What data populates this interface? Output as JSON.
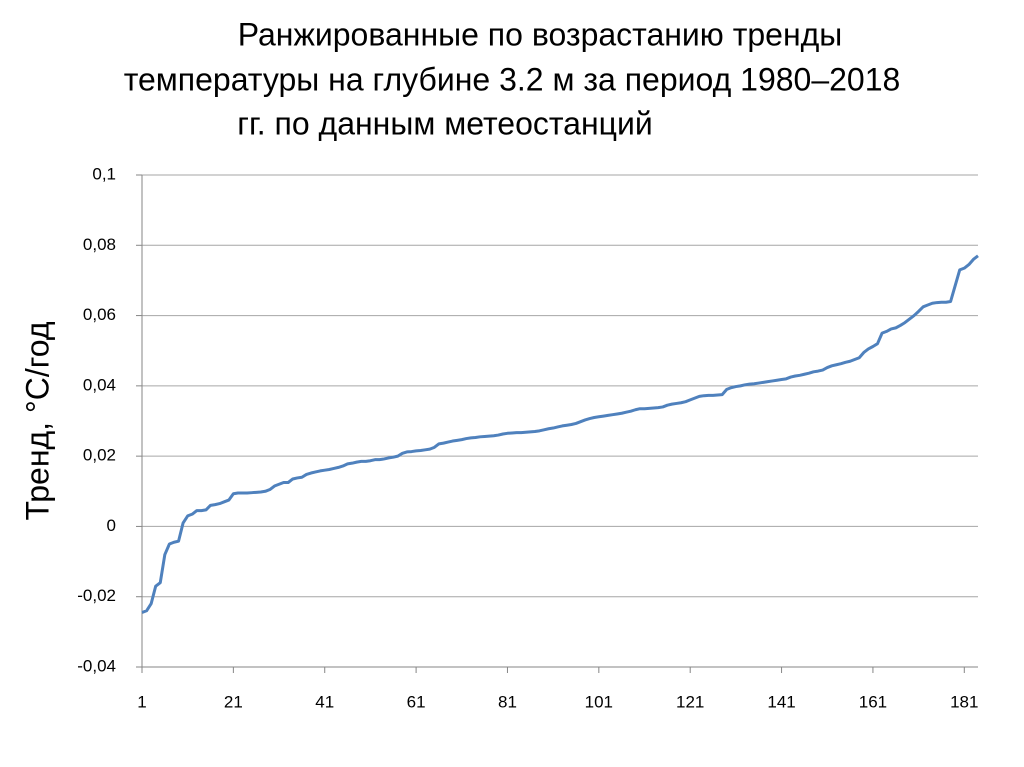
{
  "chart_data": {
    "type": "line",
    "title": [
      "Ранжированные по возрастанию тренды",
      "температуры на глубине 3.2 м за период 1980–2018",
      "гг. по данным метеостанций"
    ],
    "ylabel": "Тренд,  °C/год",
    "x": [
      1,
      2,
      3,
      4,
      5,
      6,
      7,
      8,
      9,
      10,
      11,
      12,
      13,
      14,
      15,
      16,
      17,
      18,
      19,
      20,
      21,
      22,
      23,
      24,
      25,
      26,
      27,
      28,
      29,
      30,
      31,
      32,
      33,
      34,
      35,
      36,
      37,
      38,
      39,
      40,
      41,
      42,
      43,
      44,
      45,
      46,
      47,
      48,
      49,
      50,
      51,
      52,
      53,
      54,
      55,
      56,
      57,
      58,
      59,
      60,
      61,
      62,
      63,
      64,
      65,
      66,
      67,
      68,
      69,
      70,
      71,
      72,
      73,
      74,
      75,
      76,
      77,
      78,
      79,
      80,
      81,
      82,
      83,
      84,
      85,
      86,
      87,
      88,
      89,
      90,
      91,
      92,
      93,
      94,
      95,
      96,
      97,
      98,
      99,
      100,
      101,
      102,
      103,
      104,
      105,
      106,
      107,
      108,
      109,
      110,
      111,
      112,
      113,
      114,
      115,
      116,
      117,
      118,
      119,
      120,
      121,
      122,
      123,
      124,
      125,
      126,
      127,
      128,
      129,
      130,
      131,
      132,
      133,
      134,
      135,
      136,
      137,
      138,
      139,
      140,
      141,
      142,
      143,
      144,
      145,
      146,
      147,
      148,
      149,
      150,
      151,
      152,
      153,
      154,
      155,
      156,
      157,
      158,
      159,
      160,
      161,
      162,
      163,
      164,
      165,
      166,
      167,
      168,
      169,
      170,
      171,
      172,
      173,
      174,
      175,
      176,
      177,
      178,
      179,
      180,
      181,
      182,
      183,
      184
    ],
    "series": [
      {
        "color": "#4f81bd",
        "values": [
          -0.0245,
          -0.024,
          -0.022,
          -0.017,
          -0.016,
          -0.008,
          -0.005,
          -0.0045,
          -0.0042,
          0.001,
          0.003,
          0.0035,
          0.0045,
          0.0045,
          0.0047,
          0.006,
          0.0062,
          0.0065,
          0.007,
          0.0075,
          0.0093,
          0.0095,
          0.0095,
          0.0095,
          0.0096,
          0.0097,
          0.0098,
          0.01,
          0.0105,
          0.0115,
          0.012,
          0.0125,
          0.0125,
          0.0135,
          0.0138,
          0.014,
          0.0148,
          0.0152,
          0.0155,
          0.0158,
          0.016,
          0.0162,
          0.0165,
          0.0168,
          0.0172,
          0.0178,
          0.018,
          0.0183,
          0.0185,
          0.0185,
          0.0187,
          0.019,
          0.019,
          0.0192,
          0.0195,
          0.0197,
          0.02,
          0.0208,
          0.0212,
          0.0213,
          0.0215,
          0.0216,
          0.0218,
          0.022,
          0.0225,
          0.0235,
          0.0237,
          0.024,
          0.0243,
          0.0245,
          0.0247,
          0.025,
          0.0252,
          0.0253,
          0.0255,
          0.0256,
          0.0257,
          0.0258,
          0.026,
          0.0263,
          0.0265,
          0.0266,
          0.0267,
          0.0267,
          0.0268,
          0.0269,
          0.027,
          0.0272,
          0.0275,
          0.0278,
          0.028,
          0.0283,
          0.0286,
          0.0288,
          0.029,
          0.0293,
          0.0298,
          0.0303,
          0.0307,
          0.031,
          0.0312,
          0.0314,
          0.0316,
          0.0318,
          0.032,
          0.0322,
          0.0325,
          0.0328,
          0.0332,
          0.0335,
          0.0335,
          0.0336,
          0.0337,
          0.0338,
          0.034,
          0.0345,
          0.0348,
          0.035,
          0.0352,
          0.0355,
          0.036,
          0.0365,
          0.037,
          0.0372,
          0.0373,
          0.0373,
          0.0374,
          0.0375,
          0.039,
          0.0395,
          0.0398,
          0.04,
          0.0403,
          0.0405,
          0.0406,
          0.0408,
          0.041,
          0.0412,
          0.0414,
          0.0416,
          0.0418,
          0.042,
          0.0425,
          0.0428,
          0.043,
          0.0433,
          0.0436,
          0.044,
          0.0442,
          0.0445,
          0.0452,
          0.0457,
          0.046,
          0.0463,
          0.0467,
          0.047,
          0.0475,
          0.048,
          0.0495,
          0.0505,
          0.0512,
          0.052,
          0.055,
          0.0555,
          0.0562,
          0.0565,
          0.0572,
          0.058,
          0.059,
          0.06,
          0.0612,
          0.0625,
          0.063,
          0.0635,
          0.0637,
          0.0638,
          0.0638,
          0.064,
          0.0685,
          0.073,
          0.0735,
          0.0745,
          0.076,
          0.077
        ]
      }
    ],
    "xlim": [
      1,
      184
    ],
    "xticks": [
      1,
      21,
      41,
      61,
      81,
      101,
      121,
      141,
      161,
      181
    ],
    "ylim": [
      -0.04,
      0.1
    ],
    "yticks": [
      {
        "value": -0.04,
        "label": "-0,04"
      },
      {
        "value": -0.02,
        "label": "-0,02"
      },
      0,
      {
        "value": 0.02,
        "label": "0,02"
      },
      {
        "value": 0.04,
        "label": "0,04"
      },
      {
        "value": 0.06,
        "label": "0,06"
      },
      {
        "value": 0.08,
        "label": "0,08"
      },
      {
        "value": 0.1,
        "label": "0,1"
      }
    ],
    "grid": true
  }
}
